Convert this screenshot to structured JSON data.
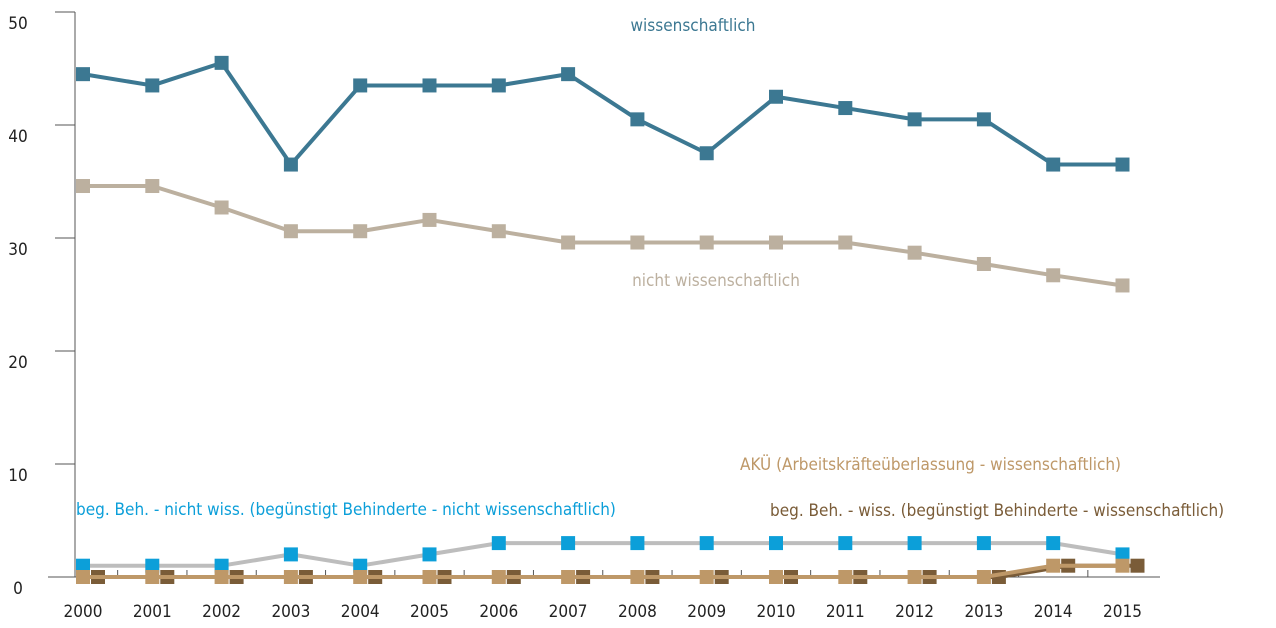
{
  "chart_data": {
    "type": "line",
    "categories": [
      "2000",
      "2001",
      "2002",
      "2003",
      "2004",
      "2005",
      "2006",
      "2007",
      "2008",
      "2009",
      "2010",
      "2011",
      "2012",
      "2013",
      "2014",
      "2015"
    ],
    "ylim": [
      0,
      50
    ],
    "yticks": [
      0,
      10,
      20,
      30,
      40,
      50
    ],
    "series": [
      {
        "name": "wissenschaftlich",
        "color": "#3c7892",
        "values": [
          44.5,
          43.5,
          45.5,
          36.5,
          43.5,
          43.5,
          43.5,
          44.5,
          40.5,
          37.5,
          42.5,
          41.5,
          40.5,
          40.5,
          36.5,
          36.5
        ]
      },
      {
        "name": "nicht wissenschaftlich",
        "color": "#bcb09f",
        "values": [
          34.6,
          34.6,
          32.7,
          30.6,
          30.6,
          31.6,
          30.6,
          29.6,
          29.6,
          29.6,
          29.6,
          29.6,
          28.7,
          27.7,
          26.7,
          25.8
        ]
      },
      {
        "name": "beg. Beh. - nicht wiss. (begünstigt Behinderte - nicht wissenschaftlich)",
        "color": "#0c9fd9",
        "line_color": "#bdbdbd",
        "values": [
          1,
          1,
          1,
          2,
          1,
          2,
          3,
          3,
          3,
          3,
          3,
          3,
          3,
          3,
          3,
          2
        ]
      },
      {
        "name": "beg. Beh. - wiss. (begünstigt Behinderte - wissenschaftlich)",
        "color": "#7a5c38",
        "values": [
          0,
          0,
          0,
          0,
          0,
          0,
          0,
          0,
          0,
          0,
          0,
          0,
          0,
          0,
          1,
          1
        ]
      },
      {
        "name": "AKÜ (Arbeitskräfteüberlassung - wissenschaftlich)",
        "color": "#be9868",
        "values": [
          0,
          0,
          0,
          0,
          0,
          0,
          0,
          0,
          0,
          0,
          0,
          0,
          0,
          0,
          1,
          1
        ]
      }
    ]
  }
}
